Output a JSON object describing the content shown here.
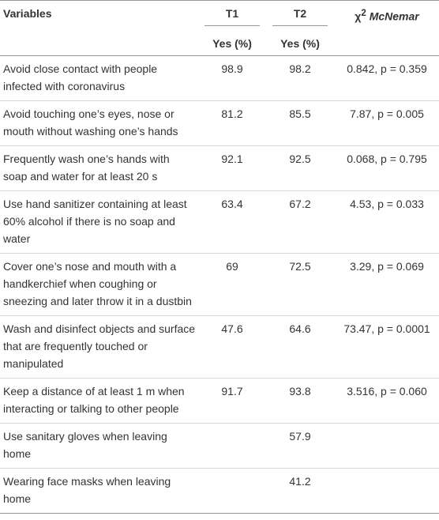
{
  "header": {
    "variables": "Variables",
    "t1": "T1",
    "t2": "T2",
    "stat_symbol": "χ",
    "stat_sup": "2",
    "stat_name": "McNemar",
    "t1_sub": "Yes (%)",
    "t2_sub": "Yes (%)"
  },
  "table": {
    "rows": [
      {
        "variable": "Avoid close contact with people infected with coronavirus",
        "t1": "98.9",
        "t2": "98.2",
        "stat": "0.842, p = 0.359"
      },
      {
        "variable": "Avoid touching one’s eyes, nose or mouth without washing one’s hands",
        "t1": "81.2",
        "t2": "85.5",
        "stat": "7.87, p = 0.005"
      },
      {
        "variable": "Frequently wash one’s hands with soap and water for at least 20 s",
        "t1": "92.1",
        "t2": "92.5",
        "stat": "0.068, p = 0.795"
      },
      {
        "variable": "Use hand sanitizer containing at least 60% alcohol if there is no soap and water",
        "t1": "63.4",
        "t2": "67.2",
        "stat": "4.53, p = 0.033"
      },
      {
        "variable": "Cover one’s nose and mouth with a handkerchief when coughing or sneezing and later throw it in a dustbin",
        "t1": "69",
        "t2": "72.5",
        "stat": "3.29, p = 0.069"
      },
      {
        "variable": "Wash and disinfect objects and surface that are frequently touched or manipulated",
        "t1": "47.6",
        "t2": "64.6",
        "stat": "73.47, p = 0.0001"
      },
      {
        "variable": "Keep a distance of at least 1 m when interacting or talking to other people",
        "t1": "91.7",
        "t2": "93.8",
        "stat": "3.516, p = 0.060"
      },
      {
        "variable": "Use sanitary gloves when leaving home",
        "t2": "57.9"
      },
      {
        "variable": "Wearing face masks when leaving home",
        "t2": "41.2"
      }
    ]
  }
}
